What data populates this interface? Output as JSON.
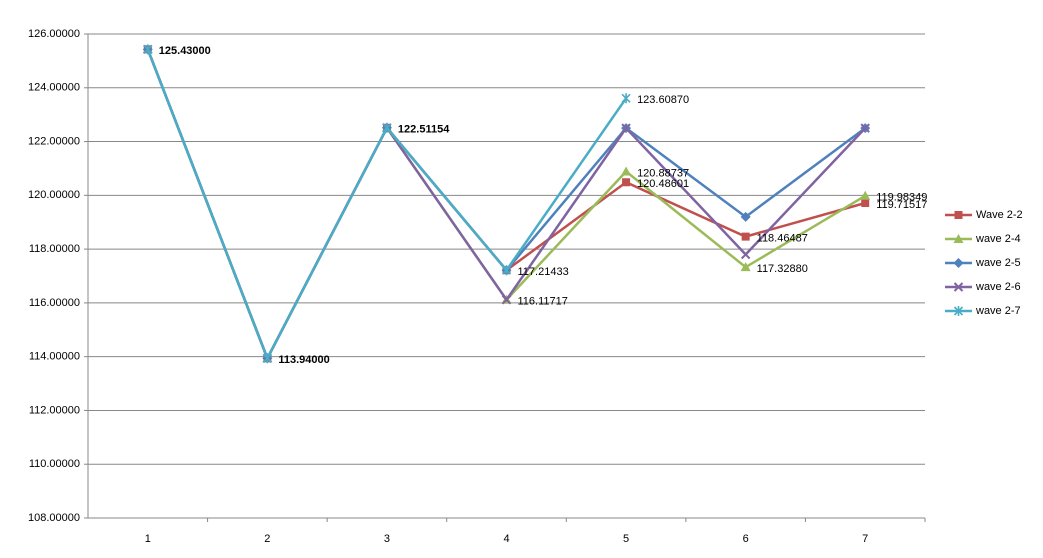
{
  "chart_data": {
    "type": "line",
    "categories": [
      "1",
      "2",
      "3",
      "4",
      "5",
      "6",
      "7"
    ],
    "ylim": [
      108,
      126
    ],
    "yticks": [
      {
        "value": 108,
        "label": "108.00000"
      },
      {
        "value": 110,
        "label": "110.00000"
      },
      {
        "value": 112,
        "label": "112.00000"
      },
      {
        "value": 114,
        "label": "114.00000"
      },
      {
        "value": 116,
        "label": "116.00000"
      },
      {
        "value": 118,
        "label": "118.00000"
      },
      {
        "value": 120,
        "label": "120.00000"
      },
      {
        "value": 122,
        "label": "122.00000"
      },
      {
        "value": 124,
        "label": "124.00000"
      },
      {
        "value": 126,
        "label": "126.00000"
      }
    ],
    "grid": true,
    "legend": "right",
    "series": [
      {
        "name": "Wave 2-2",
        "color": "#c0504d",
        "marker": "square",
        "values": [
          125.43,
          113.94,
          122.51154,
          117.21433,
          120.48601,
          118.46487,
          119.71517
        ],
        "value_labels": [
          null,
          null,
          null,
          null,
          "120.48601",
          "118.46487",
          "119.71517"
        ]
      },
      {
        "name": "wave 2-4",
        "color": "#9bbb59",
        "marker": "triangle",
        "values": [
          125.43,
          113.94,
          122.51154,
          116.11717,
          120.88737,
          117.3288,
          119.98349
        ],
        "value_labels": [
          null,
          null,
          null,
          "116.11717",
          "120.88737",
          "117.32880",
          "119.98349"
        ]
      },
      {
        "name": "wave 2-5",
        "color": "#4f81bd",
        "marker": "diamond",
        "values": [
          125.43,
          113.94,
          122.51154,
          117.21433,
          122.5,
          119.2,
          122.5
        ]
      },
      {
        "name": "wave 2-6",
        "color": "#8064a2",
        "marker": "x",
        "values": [
          125.43,
          113.94,
          122.51154,
          116.11717,
          122.5,
          117.8,
          122.5
        ]
      },
      {
        "name": "wave 2-7",
        "color": "#4bacc6",
        "marker": "star",
        "values": [
          125.43,
          113.94,
          122.51154,
          117.21433,
          123.6087,
          null,
          null
        ],
        "value_labels": [
          "125.43000",
          "113.94000",
          "122.51154",
          "117.21433",
          "123.60870",
          null,
          null
        ]
      }
    ]
  }
}
